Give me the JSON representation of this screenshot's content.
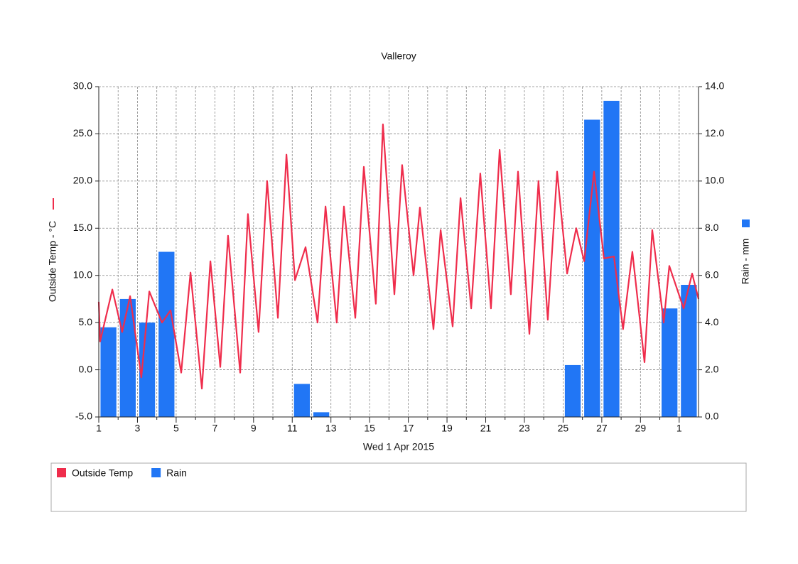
{
  "chart_data": {
    "type": "combo",
    "title": "Valleroy",
    "xlabel": "Wed 1 Apr 2015",
    "ylabel": "Outside Temp - °C",
    "y2label": "Rain - mm",
    "xlim": [
      0,
      31
    ],
    "xticks": [
      {
        "value": 0,
        "label": "1"
      },
      {
        "value": 2,
        "label": "3"
      },
      {
        "value": 4,
        "label": "5"
      },
      {
        "value": 6,
        "label": "7"
      },
      {
        "value": 8,
        "label": "9"
      },
      {
        "value": 10,
        "label": "11"
      },
      {
        "value": 12,
        "label": "13"
      },
      {
        "value": 14,
        "label": "15"
      },
      {
        "value": 16,
        "label": "17"
      },
      {
        "value": 18,
        "label": "19"
      },
      {
        "value": 20,
        "label": "21"
      },
      {
        "value": 22,
        "label": "23"
      },
      {
        "value": 24,
        "label": "25"
      },
      {
        "value": 26,
        "label": "27"
      },
      {
        "value": 28,
        "label": "29"
      },
      {
        "value": 30,
        "label": "1"
      }
    ],
    "xminorticks": [
      1,
      3,
      5,
      7,
      9,
      11,
      13,
      15,
      17,
      19,
      21,
      23,
      25,
      27,
      29
    ],
    "ylim": [
      -5,
      30
    ],
    "yticks": [
      {
        "value": -5,
        "label": "-5.0"
      },
      {
        "value": 0,
        "label": "0.0"
      },
      {
        "value": 5,
        "label": "5.0"
      },
      {
        "value": 10,
        "label": "10.0"
      },
      {
        "value": 15,
        "label": "15.0"
      },
      {
        "value": 20,
        "label": "20.0"
      },
      {
        "value": 25,
        "label": "25.0"
      },
      {
        "value": 30,
        "label": "30.0"
      }
    ],
    "y2lim": [
      0,
      14
    ],
    "y2ticks": [
      {
        "value": 0,
        "label": "0.0"
      },
      {
        "value": 2,
        "label": "2.0"
      },
      {
        "value": 4,
        "label": "4.0"
      },
      {
        "value": 6,
        "label": "6.0"
      },
      {
        "value": 8,
        "label": "8.0"
      },
      {
        "value": 10,
        "label": "10.0"
      },
      {
        "value": 12,
        "label": "12.0"
      },
      {
        "value": 14,
        "label": "14.0"
      }
    ],
    "grid": true,
    "legend": "bottom",
    "series": [
      {
        "name": "Outside Temp",
        "type": "line",
        "axis": "y",
        "color": "#ef2d4c",
        "x": [
          0,
          0.07,
          0.7,
          1.21,
          1.62,
          2.2,
          2.61,
          3.27,
          3.71,
          4.26,
          4.74,
          5.33,
          5.77,
          6.28,
          6.68,
          7.31,
          7.71,
          8.26,
          8.7,
          9.26,
          9.7,
          10.14,
          10.69,
          11.31,
          11.72,
          12.3,
          12.67,
          13.26,
          13.7,
          14.32,
          14.69,
          15.28,
          15.68,
          16.27,
          16.6,
          17.3,
          17.67,
          18.29,
          18.7,
          19.25,
          19.72,
          20.27,
          20.72,
          21.3,
          21.67,
          22.26,
          22.73,
          23.21,
          23.69,
          24.21,
          24.68,
          25.09,
          25.6,
          26.11,
          26.63,
          27.1,
          27.58,
          28.21,
          28.61,
          29.2,
          29.49,
          30.23,
          30.67,
          31
        ],
        "values": [
          7.2,
          3,
          8.5,
          4,
          7.8,
          -0.8,
          8.3,
          5,
          6.3,
          -0.3,
          10.3,
          -2,
          11.5,
          0.3,
          14.2,
          -0.3,
          16.5,
          4,
          20,
          5.5,
          22.8,
          9.5,
          13,
          5,
          17.3,
          5,
          17.3,
          5.5,
          21.5,
          7,
          26,
          8,
          21.7,
          10,
          17.2,
          4.3,
          14.8,
          4.6,
          18.2,
          6.5,
          20.8,
          6.5,
          23.3,
          8,
          21,
          3.8,
          20,
          5.3,
          21,
          10.2,
          15,
          11.5,
          21,
          11.8,
          12,
          4.3,
          12.5,
          0.8,
          14.8,
          5,
          11,
          6.5,
          10.2,
          7.5
        ]
      },
      {
        "name": "Rain",
        "type": "bar",
        "axis": "y2",
        "color": "#2176f5",
        "x": [
          0.5,
          1.5,
          2.5,
          3.5,
          10.5,
          11.5,
          24.5,
          25.5,
          26.5,
          29.5,
          30.5
        ],
        "values": [
          3.8,
          5.0,
          4.0,
          7.0,
          1.4,
          0.2,
          2.2,
          12.6,
          13.4,
          4.6,
          5.6
        ]
      }
    ]
  }
}
